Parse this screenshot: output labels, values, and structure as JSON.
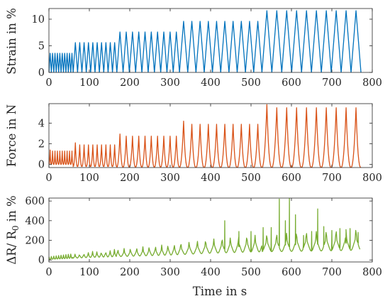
{
  "chart_data": [
    {
      "type": "line",
      "title": "",
      "xlabel": "",
      "ylabel": "Strain in %",
      "xlim": [
        0,
        800
      ],
      "ylim": [
        0,
        12
      ],
      "xticks": [
        "0",
        "100",
        "200",
        "300",
        "400",
        "500",
        "600",
        "700",
        "800"
      ],
      "yticks": [
        "0",
        "5",
        "10"
      ],
      "grid": false,
      "color": "#0072BD",
      "series": [
        {
          "description": "Cyclic triangular strain loading in blocks of increasing amplitude",
          "blocks": [
            {
              "t_start": 0,
              "t_end": 60,
              "cycles": 10,
              "peak": 3.6
            },
            {
              "t_start": 60,
              "t_end": 168,
              "cycles": 10,
              "peak": 5.6
            },
            {
              "t_start": 168,
              "t_end": 323,
              "cycles": 10,
              "peak": 7.6
            },
            {
              "t_start": 323,
              "t_end": 527,
              "cycles": 10,
              "peak": 9.6
            },
            {
              "t_start": 527,
              "t_end": 772,
              "cycles": 10,
              "peak": 11.6
            }
          ]
        }
      ]
    },
    {
      "type": "line",
      "title": "",
      "xlabel": "",
      "ylabel": "Force in N",
      "xlim": [
        0,
        800
      ],
      "ylim": [
        -0.3,
        5.9
      ],
      "xticks": [
        "0",
        "100",
        "200",
        "300",
        "400",
        "500",
        "600",
        "700",
        "800"
      ],
      "yticks": [
        "0",
        "2",
        "4"
      ],
      "grid": false,
      "color": "#D95319",
      "series": [
        {
          "description": "Force response peaks per loading block",
          "blocks": [
            {
              "t_start": 0,
              "t_end": 60,
              "cycles": 10,
              "first_peak": 1.4,
              "peak": 1.3,
              "min": 0.0
            },
            {
              "t_start": 60,
              "t_end": 168,
              "cycles": 10,
              "first_peak": 2.1,
              "peak": 1.9,
              "min": -0.2
            },
            {
              "t_start": 168,
              "t_end": 323,
              "cycles": 10,
              "first_peak": 2.95,
              "peak": 2.75,
              "min": -0.25
            },
            {
              "t_start": 323,
              "t_end": 527,
              "cycles": 10,
              "first_peak": 4.2,
              "peak": 3.9,
              "min": -0.3
            },
            {
              "t_start": 527,
              "t_end": 772,
              "cycles": 10,
              "first_peak": 5.8,
              "peak": 5.5,
              "min": -0.3
            }
          ]
        }
      ]
    },
    {
      "type": "line",
      "title": "",
      "xlabel": "Time in s",
      "ylabel": "ΔR/ R0 in %",
      "xlim": [
        0,
        800
      ],
      "ylim": [
        -20,
        630
      ],
      "xticks": [
        "0",
        "100",
        "200",
        "300",
        "400",
        "500",
        "600",
        "700",
        "800"
      ],
      "yticks": [
        "0",
        "200",
        "400",
        "600"
      ],
      "grid": false,
      "color": "#77AC30",
      "series": [
        {
          "description": "Relative resistance change with growing baseline and sharp spikes",
          "baseline_points": [
            [
              0,
              10
            ],
            [
              100,
              40
            ],
            [
              200,
              60
            ],
            [
              300,
              80
            ],
            [
              400,
              110
            ],
            [
              500,
              130
            ],
            [
              600,
              140
            ],
            [
              700,
              150
            ],
            [
              770,
              160
            ]
          ],
          "spikes": [
            [
              435,
              400
            ],
            [
              470,
              290
            ],
            [
              500,
              290
            ],
            [
              530,
              330
            ],
            [
              550,
              330
            ],
            [
              570,
              620
            ],
            [
              585,
              400
            ],
            [
              595,
              630
            ],
            [
              610,
              460
            ],
            [
              630,
              250
            ],
            [
              650,
              290
            ],
            [
              665,
              520
            ],
            [
              680,
              340
            ],
            [
              700,
              300
            ],
            [
              720,
              320
            ],
            [
              735,
              270
            ],
            [
              745,
              320
            ],
            [
              765,
              280
            ]
          ]
        }
      ]
    }
  ],
  "labels": {
    "panel1_ylabel": "Strain in %",
    "panel2_ylabel": "Force in N",
    "panel3_ylabel_main": "ΔR/ R",
    "panel3_ylabel_sub": "0",
    "panel3_ylabel_tail": " in %",
    "xlabel": "Time in s"
  }
}
